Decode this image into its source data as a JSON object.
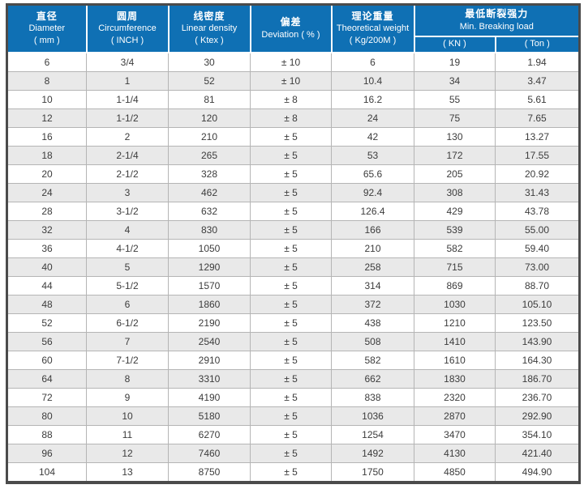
{
  "table": {
    "title_semantic": "rope-specification-table",
    "colors": {
      "header_bg": "#0f70b4",
      "header_text": "#ffffff",
      "row_alt_bg": "#e9e9e9",
      "frame": "#4b4b4b",
      "grid": "#b5b5b5",
      "body_text": "#3c3c3c"
    },
    "columns": [
      {
        "zh": "直径",
        "en": "Diameter",
        "unit": "( mm )"
      },
      {
        "zh": "圆周",
        "en": "Circumference",
        "unit": "( INCH )"
      },
      {
        "zh": "线密度",
        "en": "Linear density",
        "unit": "( Ktex )"
      },
      {
        "zh": "偏差",
        "en": "Deviation ( % )",
        "unit": ""
      },
      {
        "zh": "理论重量",
        "en": "Theoretical weight",
        "unit": "( Kg/200M )"
      },
      {
        "zh": "最低断裂强力",
        "en": "Min. Breaking load",
        "sub": [
          "( KN )",
          "( Ton )"
        ]
      }
    ],
    "rows": [
      [
        "6",
        "3/4",
        "30",
        "± 10",
        "6",
        "19",
        "1.94"
      ],
      [
        "8",
        "1",
        "52",
        "± 10",
        "10.4",
        "34",
        "3.47"
      ],
      [
        "10",
        "1-1/4",
        "81",
        "± 8",
        "16.2",
        "55",
        "5.61"
      ],
      [
        "12",
        "1-1/2",
        "120",
        "± 8",
        "24",
        "75",
        "7.65"
      ],
      [
        "16",
        "2",
        "210",
        "± 5",
        "42",
        "130",
        "13.27"
      ],
      [
        "18",
        "2-1/4",
        "265",
        "± 5",
        "53",
        "172",
        "17.55"
      ],
      [
        "20",
        "2-1/2",
        "328",
        "± 5",
        "65.6",
        "205",
        "20.92"
      ],
      [
        "24",
        "3",
        "462",
        "± 5",
        "92.4",
        "308",
        "31.43"
      ],
      [
        "28",
        "3-1/2",
        "632",
        "± 5",
        "126.4",
        "429",
        "43.78"
      ],
      [
        "32",
        "4",
        "830",
        "± 5",
        "166",
        "539",
        "55.00"
      ],
      [
        "36",
        "4-1/2",
        "1050",
        "± 5",
        "210",
        "582",
        "59.40"
      ],
      [
        "40",
        "5",
        "1290",
        "± 5",
        "258",
        "715",
        "73.00"
      ],
      [
        "44",
        "5-1/2",
        "1570",
        "± 5",
        "314",
        "869",
        "88.70"
      ],
      [
        "48",
        "6",
        "1860",
        "± 5",
        "372",
        "1030",
        "105.10"
      ],
      [
        "52",
        "6-1/2",
        "2190",
        "± 5",
        "438",
        "1210",
        "123.50"
      ],
      [
        "56",
        "7",
        "2540",
        "± 5",
        "508",
        "1410",
        "143.90"
      ],
      [
        "60",
        "7-1/2",
        "2910",
        "± 5",
        "582",
        "1610",
        "164.30"
      ],
      [
        "64",
        "8",
        "3310",
        "± 5",
        "662",
        "1830",
        "186.70"
      ],
      [
        "72",
        "9",
        "4190",
        "± 5",
        "838",
        "2320",
        "236.70"
      ],
      [
        "80",
        "10",
        "5180",
        "± 5",
        "1036",
        "2870",
        "292.90"
      ],
      [
        "88",
        "11",
        "6270",
        "± 5",
        "1254",
        "3470",
        "354.10"
      ],
      [
        "96",
        "12",
        "7460",
        "± 5",
        "1492",
        "4130",
        "421.40"
      ],
      [
        "104",
        "13",
        "8750",
        "± 5",
        "1750",
        "4850",
        "494.90"
      ]
    ]
  }
}
